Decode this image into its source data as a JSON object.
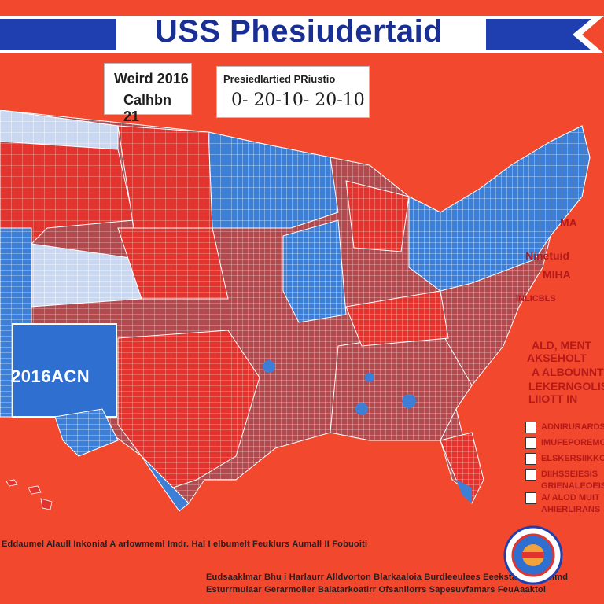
{
  "banner": {
    "title": "USS Phesiudertaid"
  },
  "info_left": {
    "line1": "Weird 2016",
    "line2": "Calhbn 21"
  },
  "info_right": {
    "line1": "Presiedlartied PRiustio",
    "line2": "0- 20-10- 20-10"
  },
  "map": {
    "label": "2016ACN",
    "annotations": [
      "MA",
      "Ninetuid",
      "MlHA",
      "iNLICBLS",
      "ALD, MENT",
      "AKSEHOLT",
      "A ALBOUNNT",
      "LEKERNGOLIS",
      "LIIOTT IN"
    ],
    "legend_items": [
      "ADNIRURARDS",
      "IMUFEPOREMOS",
      "ELSKERSIIKKOIS",
      "DIIHSSEIESIS",
      "GRIENALEOEIS",
      "A/ ALOD MUIT",
      "AHIERLIRANS"
    ]
  },
  "footer": {
    "line1": "Eddaumel Alaull Inkonial A arlowmeml Imdr. Hal I elbumelt Feuklurs Aumall II Fobuoiti",
    "line2": "Eudsaaklmar Bhu i Harlaurr Alldvorton Blarkaaloia Burdleeulees Eeekstar Foueidimd",
    "line3": "Esturrmulaar Gerarmolier Balatarkoatirr Ofsanilorrs Sapesuvfamars FeuAaaktol"
  },
  "colors": {
    "background": "#f2482e",
    "banner_blue": "#1f3fb0",
    "state_red": "#e2332f",
    "state_blue": "#3d7fd6"
  }
}
